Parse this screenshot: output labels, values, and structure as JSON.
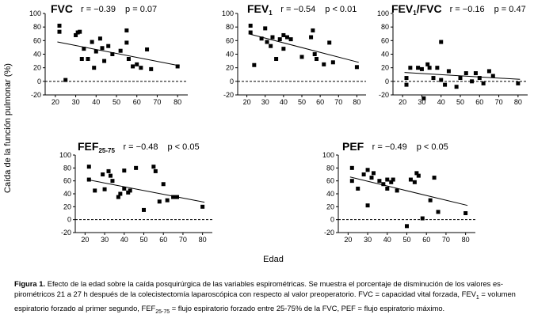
{
  "figure": {
    "ylabel": "Caída de la función pulmonar (%)",
    "xlabel": "Edad"
  },
  "caption": {
    "label": "Figura 1.",
    "line1": "Efecto de la edad sobre la caída posquirúrgica de las variables espirométricas. Se muestra el porcentaje de disminución de los valores es-",
    "line2a": "pirométricos 21 a 27 h después de la colecistectomía laparoscópica con respecto al valor preoperatorio. FVC = capacidad vital forzada, FEV",
    "line2sub": "1",
    "line2b": " = volumen",
    "line3a": "espiratorio forzado al primer segundo, FEF",
    "line3sub": "25-75",
    "line3b": " = flujo espiratorio forzado entre 25-75% de la FVC, PEF = flujo espiratorio máximo."
  },
  "chart_data": [
    {
      "type": "scatter",
      "title": "FVC",
      "title_sub": "",
      "r_label": "r = −0.39",
      "p_label": "p = 0.07",
      "xlabel": "Edad",
      "ylabel": "Caída de la función pulmonar (%)",
      "xlim": [
        15,
        85
      ],
      "ylim": [
        -20,
        100
      ],
      "xticks": [
        "20",
        "30",
        "40",
        "50",
        "60",
        "70",
        "80"
      ],
      "yticks": [
        "-20",
        "0",
        "20",
        "40",
        "60",
        "80",
        "100"
      ],
      "points": [
        [
          22,
          82
        ],
        [
          22,
          73
        ],
        [
          25,
          2
        ],
        [
          30,
          68
        ],
        [
          31,
          72
        ],
        [
          32,
          73
        ],
        [
          33,
          33
        ],
        [
          34,
          48
        ],
        [
          36,
          33
        ],
        [
          38,
          58
        ],
        [
          39,
          20
        ],
        [
          40,
          44
        ],
        [
          42,
          63
        ],
        [
          43,
          49
        ],
        [
          44,
          30
        ],
        [
          46,
          52
        ],
        [
          48,
          40
        ],
        [
          52,
          45
        ],
        [
          55,
          75
        ],
        [
          55,
          57
        ],
        [
          56,
          33
        ],
        [
          58,
          22
        ],
        [
          60,
          25
        ],
        [
          62,
          20
        ],
        [
          65,
          47
        ],
        [
          67,
          18
        ],
        [
          80,
          22
        ]
      ],
      "fit": {
        "x": [
          21,
          81
        ],
        "y": [
          58,
          23
        ]
      }
    },
    {
      "type": "scatter",
      "title": "FEV",
      "title_sub": "1",
      "r_label": "r = −0.54",
      "p_label": "p < 0.01",
      "xlabel": "Edad",
      "ylabel": "Caída de la función pulmonar (%)",
      "xlim": [
        15,
        85
      ],
      "ylim": [
        -20,
        100
      ],
      "xticks": [
        "20",
        "30",
        "40",
        "50",
        "60",
        "70",
        "80"
      ],
      "yticks": [
        "-20",
        "0",
        "20",
        "40",
        "60",
        "80",
        "100"
      ],
      "points": [
        [
          22,
          82
        ],
        [
          22,
          72
        ],
        [
          24,
          24
        ],
        [
          28,
          63
        ],
        [
          30,
          78
        ],
        [
          31,
          58
        ],
        [
          33,
          52
        ],
        [
          34,
          65
        ],
        [
          36,
          33
        ],
        [
          38,
          62
        ],
        [
          40,
          68
        ],
        [
          40,
          48
        ],
        [
          42,
          65
        ],
        [
          44,
          62
        ],
        [
          50,
          36
        ],
        [
          55,
          65
        ],
        [
          56,
          75
        ],
        [
          57,
          40
        ],
        [
          58,
          33
        ],
        [
          62,
          25
        ],
        [
          65,
          57
        ],
        [
          67,
          28
        ],
        [
          80,
          21
        ]
      ],
      "fit": {
        "x": [
          21,
          81
        ],
        "y": [
          70,
          28
        ]
      }
    },
    {
      "type": "scatter",
      "title": "FEV",
      "title_sub": "1",
      "title_tail": "/FVC",
      "r_label": "r = −0.16",
      "p_label": "p = 0.47",
      "xlabel": "Edad",
      "ylabel": "Caída de la función pulmonar (%)",
      "xlim": [
        15,
        85
      ],
      "ylim": [
        -20,
        100
      ],
      "xticks": [
        "20",
        "30",
        "40",
        "50",
        "60",
        "70",
        "80"
      ],
      "yticks": [
        "-20",
        "0",
        "20",
        "40",
        "60",
        "80",
        "100"
      ],
      "points": [
        [
          22,
          5
        ],
        [
          22,
          -5
        ],
        [
          24,
          20
        ],
        [
          28,
          20
        ],
        [
          30,
          18
        ],
        [
          31,
          -25
        ],
        [
          33,
          25
        ],
        [
          34,
          20
        ],
        [
          36,
          5
        ],
        [
          38,
          20
        ],
        [
          40,
          58
        ],
        [
          40,
          2
        ],
        [
          42,
          -5
        ],
        [
          44,
          15
        ],
        [
          48,
          -8
        ],
        [
          50,
          5
        ],
        [
          53,
          12
        ],
        [
          56,
          0
        ],
        [
          58,
          12
        ],
        [
          60,
          5
        ],
        [
          62,
          -3
        ],
        [
          65,
          15
        ],
        [
          67,
          8
        ],
        [
          80,
          -3
        ]
      ],
      "fit": {
        "x": [
          21,
          81
        ],
        "y": [
          13,
          3
        ]
      }
    },
    {
      "type": "scatter",
      "title": "FEF",
      "title_sub": "25-75",
      "r_label": "r = −0.48",
      "p_label": "p < 0.05",
      "xlabel": "Edad",
      "ylabel": "Caída de la función pulmonar (%)",
      "xlim": [
        15,
        85
      ],
      "ylim": [
        -20,
        100
      ],
      "xticks": [
        "20",
        "30",
        "40",
        "50",
        "60",
        "70",
        "80"
      ],
      "yticks": [
        "-20",
        "0",
        "20",
        "40",
        "60",
        "80",
        "100"
      ],
      "points": [
        [
          22,
          82
        ],
        [
          22,
          62
        ],
        [
          25,
          45
        ],
        [
          29,
          70
        ],
        [
          30,
          47
        ],
        [
          32,
          75
        ],
        [
          33,
          68
        ],
        [
          34,
          60
        ],
        [
          37,
          35
        ],
        [
          38,
          40
        ],
        [
          40,
          76
        ],
        [
          40,
          48
        ],
        [
          42,
          42
        ],
        [
          43,
          45
        ],
        [
          46,
          80
        ],
        [
          50,
          15
        ],
        [
          55,
          82
        ],
        [
          56,
          75
        ],
        [
          58,
          28
        ],
        [
          60,
          55
        ],
        [
          62,
          30
        ],
        [
          65,
          35
        ],
        [
          67,
          35
        ],
        [
          80,
          20
        ]
      ],
      "fit": {
        "x": [
          21,
          81
        ],
        "y": [
          62,
          27
        ]
      }
    },
    {
      "type": "scatter",
      "title": "PEF",
      "title_sub": "",
      "r_label": "r = −0.49",
      "p_label": "p < 0.05",
      "xlabel": "Edad",
      "ylabel": "Caída de la función pulmonar (%)",
      "xlim": [
        15,
        85
      ],
      "ylim": [
        -20,
        100
      ],
      "xticks": [
        "20",
        "30",
        "40",
        "50",
        "60",
        "70",
        "80"
      ],
      "yticks": [
        "-20",
        "0",
        "20",
        "40",
        "60",
        "80",
        "100"
      ],
      "points": [
        [
          22,
          80
        ],
        [
          22,
          60
        ],
        [
          25,
          48
        ],
        [
          28,
          70
        ],
        [
          30,
          77
        ],
        [
          30,
          22
        ],
        [
          32,
          65
        ],
        [
          33,
          72
        ],
        [
          36,
          60
        ],
        [
          38,
          55
        ],
        [
          40,
          62
        ],
        [
          40,
          48
        ],
        [
          42,
          58
        ],
        [
          43,
          62
        ],
        [
          45,
          45
        ],
        [
          50,
          -10
        ],
        [
          52,
          62
        ],
        [
          54,
          58
        ],
        [
          55,
          72
        ],
        [
          56,
          68
        ],
        [
          58,
          2
        ],
        [
          62,
          30
        ],
        [
          64,
          65
        ],
        [
          66,
          12
        ],
        [
          80,
          10
        ]
      ],
      "fit": {
        "x": [
          21,
          81
        ],
        "y": [
          66,
          22
        ]
      }
    }
  ]
}
